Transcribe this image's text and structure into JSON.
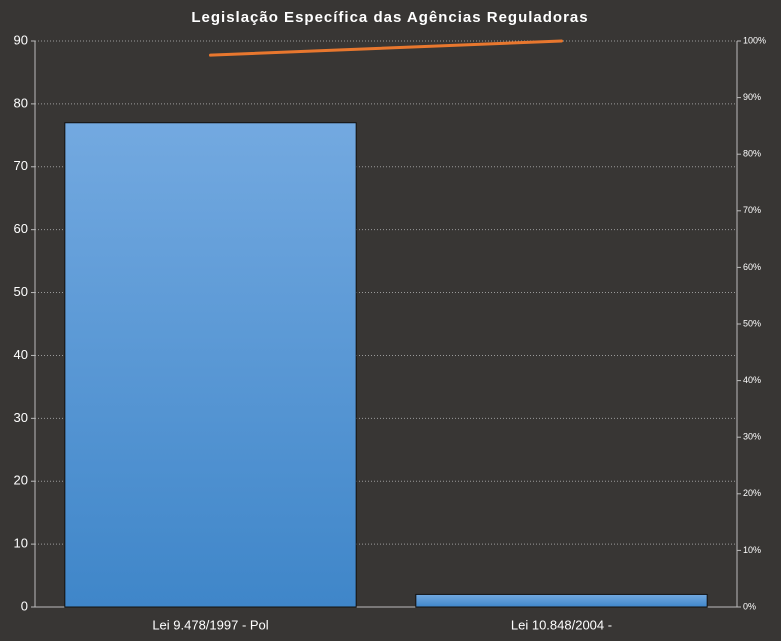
{
  "chart_data": {
    "type": "bar",
    "title": "Legislação Específica das Agências Reguladoras",
    "categories": [
      "Lei 9.478/1997 - Pol",
      "Lei 10.848/2004 -"
    ],
    "series": [
      {
        "type": "bar",
        "color": "#4a8fd2",
        "values": [
          77,
          2
        ]
      },
      {
        "type": "line",
        "color": "#e8772e",
        "axis": "y2",
        "values": [
          97.5,
          100
        ]
      }
    ],
    "ylim": [
      0,
      90
    ],
    "yticks": [
      0,
      10,
      20,
      30,
      40,
      50,
      60,
      70,
      80,
      90
    ],
    "y2lim": [
      0,
      100
    ],
    "y2ticks": [
      {
        "value": 0,
        "label": "0%"
      },
      {
        "value": 10,
        "label": "10%"
      },
      {
        "value": 20,
        "label": "20%"
      },
      {
        "value": 30,
        "label": "30%"
      },
      {
        "value": 40,
        "label": "40%"
      },
      {
        "value": 50,
        "label": "50%"
      },
      {
        "value": 60,
        "label": "60%"
      },
      {
        "value": 70,
        "label": "70%"
      },
      {
        "value": 80,
        "label": "80%"
      },
      {
        "value": 90,
        "label": "90%"
      },
      {
        "value": 100,
        "label": "100%"
      }
    ],
    "grid": true
  }
}
